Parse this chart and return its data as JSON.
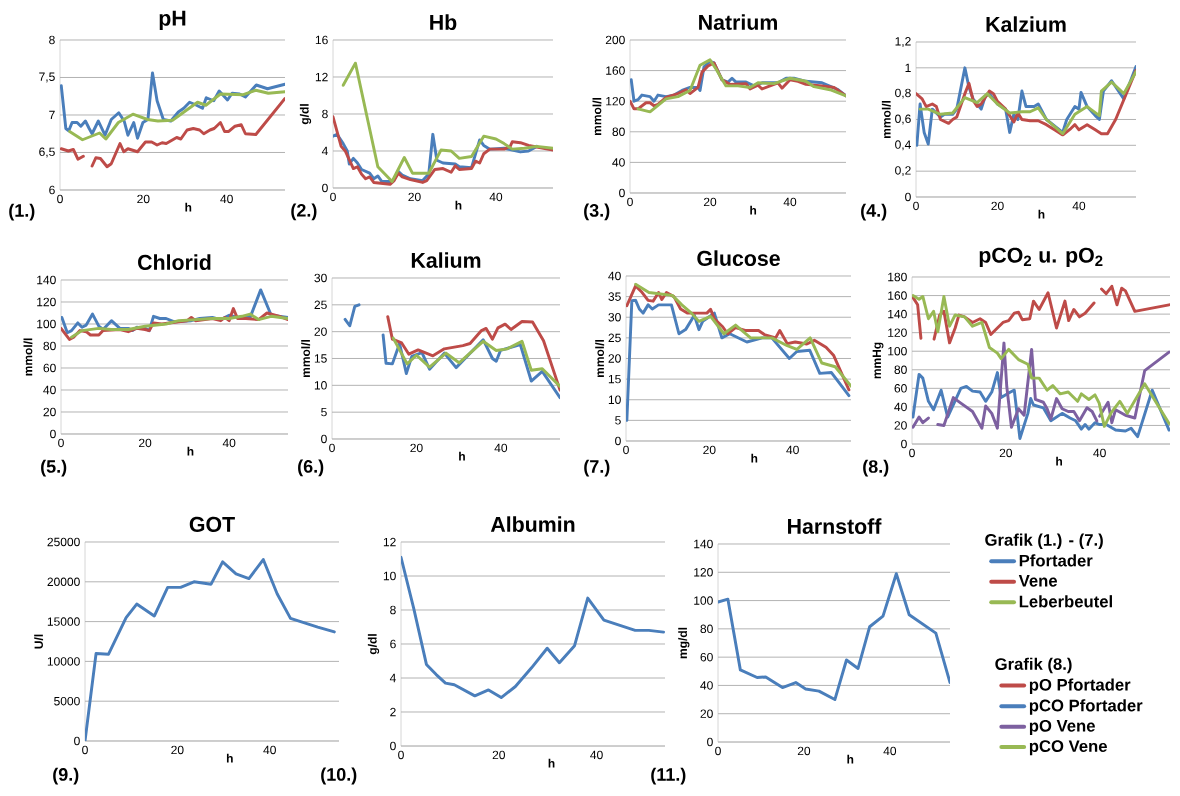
{
  "chart_data": [
    {
      "type": "line",
      "title": "pH",
      "xlabel": "h",
      "annotations": [
        "(1.)"
      ],
      "xlim": [
        0,
        54
      ],
      "ylim": [
        6,
        8
      ],
      "xticks": [
        0,
        20,
        40
      ],
      "yticks": [
        6,
        {
          "value": 6.5,
          "label": "6,5"
        },
        7,
        {
          "value": 7.5,
          "label": "7,5"
        },
        8
      ],
      "grid": "y",
      "legend": "right",
      "legend_title": "Grafik (1.) - (7.)",
      "series": [
        {
          "name": "Pfortader",
          "color": "#4a7ebb",
          "x": [
            0.3,
            1.4,
            2.1,
            2.9,
            4.1,
            5,
            6.1,
            7,
            7.7,
            9.2,
            10.8,
            12.3,
            14.1,
            15.4,
            16.3,
            17.7,
            18.6,
            19.9,
            21.1,
            22.2,
            23.3,
            24.8,
            26.6,
            28.4,
            29.7,
            31.1,
            32.4,
            34.2,
            35.1,
            36.9,
            38.2,
            40.2,
            41.3,
            43.1,
            44.5,
            47.1,
            49.8,
            54
          ],
          "values": [
            7.39,
            6.82,
            6.79,
            6.9,
            6.9,
            6.85,
            6.92,
            6.82,
            6.75,
            6.92,
            6.73,
            6.94,
            7.03,
            6.92,
            6.73,
            6.9,
            6.69,
            6.9,
            6.94,
            7.56,
            7.19,
            6.94,
            6.92,
            7.04,
            7.09,
            7.17,
            7.14,
            7.09,
            7.23,
            7.19,
            7.32,
            7.2,
            7.29,
            7.28,
            7.24,
            7.4,
            7.35,
            7.41
          ]
        },
        {
          "name": "Vene",
          "color": "#be4b48",
          "x": [
            0.3,
            2,
            3.2,
            4.3,
            5.6,
            6.6,
            7.7,
            8.6,
            9.7,
            11.3,
            12.3,
            14.4,
            15.3,
            16.3,
            18.6,
            20.5,
            22,
            23.3,
            24.5,
            25.5,
            28,
            29,
            30.5,
            32,
            33.5,
            34.5,
            36,
            37,
            38.5,
            39.5,
            40.5,
            42,
            43.5,
            44.5,
            47,
            54
          ],
          "values": [
            6.55,
            6.52,
            6.54,
            6.41,
            6.45,
            null,
            6.32,
            6.43,
            6.42,
            6.31,
            6.35,
            6.62,
            6.51,
            6.55,
            6.51,
            6.64,
            6.64,
            6.6,
            6.63,
            6.62,
            6.7,
            6.68,
            6.8,
            6.82,
            6.8,
            6.75,
            6.8,
            6.82,
            6.9,
            6.78,
            6.78,
            6.85,
            6.87,
            6.75,
            6.74,
            7.22
          ]
        },
        {
          "name": "Leberbeutel",
          "color": "#98b954",
          "x": [
            2.3,
            5.4,
            9.5,
            11,
            14,
            17.5,
            21,
            23.5,
            27,
            30,
            33,
            35,
            38.5,
            44,
            47,
            50,
            54
          ],
          "values": [
            6.78,
            6.67,
            6.76,
            6.68,
            6.9,
            7.01,
            6.94,
            6.92,
            6.93,
            7.05,
            7.17,
            7.13,
            7.28,
            7.27,
            7.33,
            7.29,
            7.31
          ]
        }
      ]
    },
    {
      "type": "line",
      "title": "Hb",
      "xlabel": "h",
      "ylabel": "g/dl",
      "annotations": [
        "(2.)"
      ],
      "xlim": [
        0,
        54
      ],
      "ylim": [
        0,
        16
      ],
      "xticks": [
        0,
        20,
        40
      ],
      "yticks": [
        0,
        4,
        8,
        12,
        16
      ],
      "grid": "y",
      "series": [
        {
          "color": "#4a7ebb",
          "x": [
            0,
            1,
            2.5,
            3.5,
            4,
            5,
            6,
            7,
            9,
            10,
            11,
            12,
            14,
            15,
            16,
            17,
            19,
            22,
            23.5,
            24.5,
            25.5,
            27,
            30,
            31,
            34,
            36,
            37,
            38.5,
            42,
            44,
            46,
            48,
            50
          ],
          "values": [
            5.6,
            5.8,
            4.8,
            4,
            2.6,
            3.2,
            2.7,
            2,
            1.6,
            1,
            1.3,
            0.7,
            0.7,
            0.9,
            1.8,
            1.4,
            1,
            0.8,
            1.5,
            5.8,
            3,
            2.7,
            2.6,
            2.3,
            2.2,
            5.2,
            4.6,
            4.2,
            4.3,
            4.1,
            3.9,
            4,
            4.5
          ]
        },
        {
          "color": "#be4b48",
          "x": [
            0,
            2,
            3,
            5,
            6,
            7,
            8,
            9,
            10,
            12,
            14,
            15,
            16,
            17,
            19,
            22,
            23,
            25,
            27,
            29,
            30,
            31,
            34,
            35,
            36,
            37,
            38.5,
            42,
            43.5,
            44,
            46,
            48,
            54
          ],
          "values": [
            7.7,
            4.5,
            4,
            2.1,
            2.3,
            1.5,
            1,
            1.2,
            0.6,
            0.5,
            0.4,
            0.8,
            1.6,
            1.2,
            0.9,
            0.6,
            0.8,
            2,
            2.1,
            1.7,
            2.4,
            2,
            2.1,
            2.9,
            2.7,
            3.7,
            4.2,
            4.2,
            4.5,
            5,
            4.9,
            4.6,
            4.1
          ]
        },
        {
          "color": "#98b954",
          "x": [
            2.5,
            5.5,
            11,
            14.5,
            17.5,
            19.5,
            23.5,
            26.5,
            29,
            31,
            34,
            37,
            40,
            42,
            44,
            47,
            50,
            54
          ],
          "values": [
            11.1,
            13.5,
            2.3,
            0.7,
            3.3,
            1.6,
            1.6,
            4.1,
            4,
            3.2,
            3.4,
            5.6,
            5.3,
            4.8,
            4.2,
            4.3,
            4.5,
            4.3
          ]
        }
      ]
    },
    {
      "type": "line",
      "title": "Natrium",
      "xlabel": "h",
      "ylabel": "mmol/l",
      "annotations": [
        "(3.)"
      ],
      "xlim": [
        0,
        54
      ],
      "ylim": [
        0,
        200
      ],
      "xticks": [
        0,
        20,
        40
      ],
      "yticks": [
        0,
        40,
        80,
        120,
        160,
        200
      ],
      "grid": "y",
      "series": [
        {
          "color": "#4a7ebb",
          "x": [
            0.3,
            1,
            2,
            3,
            5,
            6,
            7,
            9,
            11,
            13,
            15,
            17,
            17.5,
            18.5,
            20,
            21,
            23,
            24.5,
            25.5,
            26.5,
            29,
            31,
            33,
            37,
            39,
            41,
            44,
            48,
            52,
            54
          ],
          "values": [
            148,
            120,
            122,
            128,
            126,
            120,
            128,
            126,
            128,
            134,
            138,
            138,
            134,
            165,
            172,
            170,
            148,
            145,
            150,
            145,
            145,
            140,
            144,
            144,
            150,
            150,
            146,
            144,
            135,
            127
          ]
        },
        {
          "color": "#be4b48",
          "x": [
            0,
            1,
            2,
            4,
            5,
            6,
            7,
            9,
            12,
            14,
            15,
            17,
            18,
            19.5,
            21,
            23,
            25,
            29,
            30,
            32,
            33,
            35,
            37,
            38,
            40,
            42,
            44,
            48,
            51,
            54
          ],
          "values": [
            120,
            110,
            110,
            118,
            118,
            114,
            116,
            125,
            130,
            135,
            130,
            138,
            158,
            166,
            170,
            148,
            142,
            143,
            136,
            141,
            136,
            140,
            144,
            137,
            148,
            146,
            142,
            140,
            138,
            127
          ]
        },
        {
          "color": "#98b954",
          "x": [
            2,
            5,
            9,
            12,
            15,
            17.5,
            20,
            21.5,
            24,
            27,
            30,
            32,
            36,
            40,
            44,
            46,
            50,
            54
          ],
          "values": [
            110,
            106,
            123,
            126,
            134,
            167,
            174,
            162,
            140,
            140,
            138,
            144,
            143,
            150,
            146,
            139,
            135,
            127
          ]
        }
      ]
    },
    {
      "type": "line",
      "title": "Kalzium",
      "xlabel": "h",
      "ylabel": "mmol/l",
      "annotations": [
        "(4.)"
      ],
      "xlim": [
        0,
        54
      ],
      "ylim": [
        0,
        1.2
      ],
      "xticks": [
        0,
        20,
        40
      ],
      "yticks": [
        0,
        {
          "value": 0.2,
          "label": "0,2"
        },
        {
          "value": 0.4,
          "label": "0,4"
        },
        {
          "value": 0.6,
          "label": "0,6"
        },
        {
          "value": 0.8,
          "label": "0,8"
        },
        1,
        {
          "value": 1.2,
          "label": "1,2"
        }
      ],
      "grid": "y",
      "series": [
        {
          "color": "#4a7ebb",
          "x": [
            0.2,
            1,
            2,
            3,
            4,
            6,
            7,
            9,
            10,
            12,
            13,
            14,
            16,
            17,
            18,
            20,
            22,
            23,
            24,
            25,
            26,
            27,
            29,
            30,
            32,
            34,
            36,
            37,
            39,
            40,
            40.5,
            42,
            44,
            45,
            46,
            48,
            51,
            54
          ],
          "values": [
            0.4,
            0.72,
            0.5,
            0.41,
            0.68,
            0.62,
            0.64,
            0.64,
            0.68,
            1.0,
            0.85,
            0.76,
            0.68,
            0.78,
            0.8,
            0.72,
            0.68,
            0.5,
            0.64,
            0.6,
            0.82,
            0.7,
            0.7,
            0.72,
            0.6,
            0.55,
            0.5,
            0.6,
            0.7,
            0.68,
            0.81,
            0.7,
            0.63,
            0.6,
            0.82,
            0.9,
            0.76,
            1.01
          ]
        },
        {
          "color": "#be4b48",
          "x": [
            0,
            1.5,
            2.5,
            4,
            5,
            6,
            8,
            9,
            10,
            12,
            13,
            14,
            15,
            16,
            18,
            19,
            20,
            22,
            24,
            25,
            26,
            28,
            30,
            32,
            34,
            36,
            38,
            39,
            40,
            42,
            44,
            45.5,
            47,
            49,
            54
          ],
          "values": [
            0.8,
            0.76,
            0.7,
            0.72,
            0.7,
            0.6,
            0.57,
            0.6,
            0.62,
            0.8,
            0.88,
            0.75,
            0.7,
            0.72,
            0.82,
            0.8,
            0.74,
            0.68,
            0.58,
            0.65,
            0.6,
            0.59,
            0.59,
            0.56,
            0.52,
            0.48,
            0.53,
            0.56,
            0.52,
            0.56,
            0.52,
            0.49,
            0.49,
            0.6,
            0.98
          ]
        },
        {
          "color": "#98b954",
          "x": [
            1,
            3,
            6,
            9,
            12,
            15,
            17.5,
            20,
            23,
            26,
            28,
            30,
            32,
            36,
            39,
            42,
            45,
            45.5,
            48,
            51,
            54
          ],
          "values": [
            0.68,
            0.68,
            0.64,
            0.65,
            0.77,
            0.73,
            0.8,
            0.72,
            0.65,
            0.66,
            0.66,
            0.69,
            0.6,
            0.49,
            0.64,
            0.7,
            0.63,
            0.82,
            0.89,
            0.8,
            0.97
          ]
        }
      ]
    },
    {
      "type": "line",
      "title": "Chlorid",
      "xlabel": "h",
      "ylabel": "mmol/l",
      "annotations": [
        "(5.)"
      ],
      "xlim": [
        0,
        54
      ],
      "ylim": [
        0,
        140
      ],
      "xticks": [
        0,
        20,
        40
      ],
      "yticks": [
        0,
        20,
        40,
        60,
        80,
        100,
        120,
        140
      ],
      "grid": "y",
      "series": [
        {
          "color": "#4a7ebb",
          "x": [
            0.2,
            1.5,
            2.5,
            4,
            5,
            6,
            7.5,
            9,
            10,
            12,
            14,
            16,
            17,
            18,
            20,
            21,
            22,
            23.5,
            25,
            27,
            31,
            33,
            36,
            38,
            40,
            42,
            44,
            45,
            47.5,
            50,
            54
          ],
          "values": [
            106,
            92,
            94,
            101,
            97,
            99,
            109,
            98,
            95,
            103,
            96,
            96,
            94,
            97,
            96,
            94,
            107,
            105,
            105,
            102,
            103,
            105,
            106,
            104,
            108,
            106,
            107,
            106,
            131,
            108,
            106
          ]
        },
        {
          "color": "#be4b48",
          "x": [
            0,
            2,
            3,
            4.5,
            6,
            7,
            9,
            10,
            14,
            16,
            18,
            20,
            21,
            22,
            24,
            28,
            30,
            31,
            32,
            36,
            38,
            39,
            40,
            41,
            42,
            44,
            47,
            49,
            52,
            54
          ],
          "values": [
            96,
            86,
            88,
            94,
            93,
            90,
            90,
            94,
            95,
            93,
            96,
            95,
            94,
            101,
            100,
            102,
            103,
            106,
            103,
            105,
            103,
            106,
            103,
            114,
            105,
            105,
            104,
            110,
            107,
            104
          ]
        },
        {
          "color": "#98b954",
          "x": [
            2.5,
            5,
            9,
            12,
            16,
            20,
            25,
            28,
            32,
            36,
            40,
            43,
            45,
            47,
            50,
            54
          ],
          "values": [
            88,
            94,
            96,
            95,
            95,
            98,
            100,
            103,
            104,
            105,
            105,
            107,
            109,
            104,
            107,
            105
          ]
        }
      ]
    },
    {
      "type": "line",
      "title": "Kalium",
      "xlabel": "h",
      "ylabel": "mmol/l",
      "annotations": [
        "(6.)"
      ],
      "xlim": [
        0,
        54
      ],
      "ylim": [
        0,
        30
      ],
      "xticks": [
        0,
        20,
        40
      ],
      "yticks": [
        0,
        5,
        10,
        15,
        20,
        25,
        30
      ],
      "grid": "y",
      "series": [
        {
          "color": "#4a7ebb",
          "x": [
            3.1,
            4.2,
            5.4,
            6.4,
            9,
            12.1,
            12.8,
            14.3,
            16,
            17.6,
            18.9,
            21.3,
            23.1,
            26.6,
            29.4,
            35.8,
            38,
            38.9,
            39.9,
            44.6,
            47.2,
            49.8,
            54
          ],
          "values": [
            22.3,
            21.1,
            24.7,
            25,
            null,
            19.4,
            14.1,
            14,
            17.8,
            12.2,
            15.4,
            16.1,
            13,
            16,
            13.3,
            18.5,
            15,
            14.5,
            16.5,
            17.6,
            10.8,
            12.6,
            7.7
          ]
        },
        {
          "color": "#be4b48",
          "x": [
            13.2,
            14.3,
            16.5,
            18.2,
            20.4,
            23.9,
            26.6,
            31,
            32.7,
            35.4,
            36.5,
            38,
            39.3,
            41,
            42.4,
            45,
            47.5,
            50.1,
            54
          ],
          "values": [
            22.8,
            18.6,
            17.9,
            15.8,
            16.6,
            15.5,
            16.8,
            17.4,
            17.8,
            20.2,
            20.6,
            18.6,
            20.7,
            21.4,
            20.4,
            21.9,
            21.8,
            18.3,
            9.1
          ]
        },
        {
          "color": "#98b954",
          "x": [
            14.5,
            17.8,
            20,
            23.1,
            27,
            30.1,
            35.8,
            38.9,
            41.5,
            45,
            47.2,
            49.8,
            54
          ],
          "values": [
            18.8,
            14,
            15.6,
            13.4,
            16,
            14.2,
            18.2,
            16.5,
            16.8,
            18.2,
            12.8,
            13.1,
            9.8
          ]
        }
      ]
    },
    {
      "type": "line",
      "title": "Glucose",
      "xlabel": "h",
      "ylabel": "mmol/l",
      "annotations": [
        "(7.)"
      ],
      "xlim": [
        0,
        54
      ],
      "ylim": [
        0,
        40
      ],
      "xticks": [
        0,
        20,
        40
      ],
      "yticks": [
        0,
        5,
        10,
        15,
        20,
        25,
        30,
        35,
        40
      ],
      "grid": "y",
      "series": [
        {
          "color": "#4a7ebb",
          "x": [
            0.2,
            1.4,
            2.3,
            3.2,
            4.1,
            5.3,
            6.3,
            7.8,
            10.9,
            12.7,
            14.3,
            16.4,
            17.5,
            18.4,
            19.8,
            21.2,
            23,
            24.9,
            29,
            32.7,
            35,
            39.2,
            41,
            44.1,
            46.5,
            49.3,
            53.5
          ],
          "values": [
            5,
            34,
            34.1,
            32,
            31,
            33,
            32,
            33,
            33,
            26,
            27,
            30.5,
            27,
            29,
            30,
            31,
            25,
            26,
            24,
            25,
            25,
            20,
            21.7,
            22,
            16.4,
            16.6,
            11
          ]
        },
        {
          "color": "#be4b48",
          "x": [
            0.2,
            2.3,
            3.7,
            5.3,
            6.5,
            7.8,
            8.6,
            9.7,
            11.5,
            13.1,
            14.7,
            16.6,
            19.4,
            20.3,
            21.2,
            23.2,
            24.4,
            26.3,
            28.6,
            31.8,
            33.2,
            35.9,
            36.9,
            38.7,
            40.6,
            43.4,
            45.2,
            48,
            49.8,
            53.5
          ],
          "values": [
            32.8,
            37.6,
            36.2,
            34.1,
            33.9,
            36,
            34.3,
            36,
            35,
            32,
            31,
            31,
            31,
            31.9,
            29.6,
            27.7,
            26,
            27.5,
            26.8,
            26.8,
            25.8,
            25,
            26.8,
            23.6,
            24,
            23.5,
            24.4,
            22.7,
            20.8,
            12.4
          ]
        },
        {
          "color": "#98b954",
          "x": [
            2.3,
            5.5,
            11.1,
            13.4,
            15.7,
            17.5,
            20.3,
            23.5,
            26.3,
            29.9,
            35,
            38.7,
            41,
            44.2,
            47,
            50.2,
            54
          ],
          "values": [
            38,
            36,
            35.3,
            33,
            31,
            29,
            30.2,
            26,
            28.1,
            25,
            25,
            23.1,
            22.2,
            25,
            18.9,
            18,
            13.3
          ]
        }
      ]
    },
    {
      "type": "line",
      "title": "pCO$_{2}$ u. pO$_{2}$",
      "xlabel": "h",
      "ylabel": "mmHg",
      "annotations": [
        "(8.)"
      ],
      "xlim": [
        0,
        55
      ],
      "ylim": [
        0,
        180
      ],
      "xticks": [
        0,
        20,
        40
      ],
      "yticks": [
        0,
        20,
        40,
        60,
        80,
        100,
        120,
        140,
        160,
        180
      ],
      "grid": "y",
      "legend": "right",
      "legend_title": "Grafik (8.)",
      "series": [
        {
          "name": "pO Pfortader",
          "color": "#be4b48",
          "x": [
            0.2,
            1.2,
            1.9,
            3.3,
            4.7,
            5.9,
            6.8,
            8,
            9.2,
            10,
            11.2,
            12.9,
            14.5,
            15.7,
            16.8,
            18.2,
            19.4,
            20.6,
            21.8,
            22.7,
            23.5,
            25.1,
            25.9,
            27.1,
            29,
            30.8,
            32.6,
            33.4,
            34.5,
            35.7,
            36.9,
            38.8,
            39.6,
            40.4,
            41.4,
            42.6,
            43.7,
            44.7,
            45.5,
            47.5,
            54.8
          ],
          "values": [
            158,
            150,
            114,
            null,
            113,
            139,
            143,
            109,
            125,
            139,
            137,
            131,
            135,
            131,
            118,
            125,
            131,
            133,
            141,
            142,
            134,
            135,
            154,
            145,
            163,
            125,
            154,
            133,
            145,
            137,
            141,
            152,
            null,
            167,
            162,
            170,
            150,
            168,
            165,
            143,
            150
          ]
        },
        {
          "name": "pCO Pfortader",
          "color": "#4a7ebb",
          "x": [
            0.2,
            1.5,
            2.3,
            3.5,
            4.6,
            6.2,
            7.6,
            10.4,
            11.6,
            12.9,
            14.5,
            15.7,
            17,
            18.2,
            19,
            21,
            21.8,
            23,
            24.7,
            25.3,
            25.9,
            28,
            29.6,
            30.8,
            32,
            33.7,
            34.9,
            36.1,
            36.9,
            37.7,
            39,
            40,
            41.4,
            43.4,
            45.5,
            46.7,
            48.1,
            51.2,
            54.8
          ],
          "values": [
            29,
            75,
            71,
            46,
            37,
            58,
            29,
            60,
            62,
            57,
            56,
            46,
            56,
            77,
            50,
            56,
            58,
            6,
            33,
            49,
            42,
            39,
            25,
            29,
            33,
            28,
            25,
            16,
            21,
            16,
            23,
            21,
            21,
            15,
            14,
            17,
            8,
            58,
            15
          ]
        },
        {
          "name": "pO Vene",
          "color": "#7d60a0",
          "x": [
            0.2,
            1.5,
            2.3,
            3.5,
            4.5,
            5.5,
            6.8,
            8.8,
            10.4,
            12.9,
            14.9,
            15.7,
            17,
            18.2,
            19.6,
            20.2,
            21.2,
            22.7,
            23.9,
            25.5,
            26.3,
            28,
            28.8,
            29.6,
            30.8,
            32,
            33.3,
            34.5,
            35.7,
            37.3,
            38.4,
            39.4,
            39.7,
            40,
            41.8,
            42.6,
            43.4,
            45.5,
            47.5,
            49.6,
            54.8
          ],
          "values": [
            18,
            29,
            23,
            28,
            null,
            21,
            20,
            50,
            44,
            35,
            17,
            41,
            33,
            17,
            109,
            62,
            18,
            38,
            31,
            102,
            48,
            45,
            38,
            27,
            49,
            38,
            35,
            35,
            25,
            39,
            35,
            25,
            null,
            30,
            45,
            23,
            37,
            31,
            28,
            79,
            99
          ]
        },
        {
          "name": "pCO Vene",
          "color": "#98b954",
          "x": [
            0.2,
            1.5,
            2.3,
            3.5,
            4.6,
            5.5,
            6.8,
            8,
            9.2,
            11.2,
            12.9,
            14.9,
            16.5,
            18.2,
            19,
            20.6,
            22.7,
            24.7,
            25.5,
            27.1,
            28.8,
            30,
            31.6,
            33.3,
            35.3,
            36.1,
            37.7,
            39,
            39.9,
            41,
            42.5,
            44.3,
            45.9,
            49.6,
            54.8
          ],
          "values": [
            160,
            156,
            159,
            135,
            143,
            121,
            159,
            127,
            139,
            137,
            127,
            131,
            104,
            98,
            92,
            102,
            91,
            86,
            71,
            71,
            58,
            63,
            54,
            56,
            46,
            54,
            48,
            53,
            44,
            19,
            34,
            46,
            33,
            65,
            22
          ]
        }
      ]
    },
    {
      "type": "line",
      "title": "GOT",
      "xlabel": "h",
      "ylabel": "U/l",
      "annotations": [
        "(9.)"
      ],
      "xlim": [
        0,
        55
      ],
      "ylim": [
        0,
        25000
      ],
      "xticks": [
        0,
        20,
        40
      ],
      "yticks": [
        0,
        5000,
        10000,
        15000,
        20000,
        25000
      ],
      "grid": "y",
      "series": [
        {
          "color": "#4a7ebb",
          "x": [
            0,
            2.4,
            5.1,
            8.9,
            11.2,
            15,
            17.9,
            20.7,
            23.6,
            27.3,
            29.8,
            32.7,
            35.5,
            38.6,
            41.6,
            44.5,
            50.4,
            54
          ],
          "values": [
            0,
            11000,
            10900,
            15500,
            17200,
            15700,
            19300,
            19300,
            20000,
            19700,
            22500,
            21000,
            20400,
            22800,
            18500,
            15400,
            14300,
            13700
          ]
        }
      ]
    },
    {
      "type": "line",
      "title": "Albumin",
      "xlabel": "h",
      "ylabel": "g/dl",
      "annotations": [
        "(10.)"
      ],
      "xlim": [
        0,
        54
      ],
      "ylim": [
        0,
        12
      ],
      "xticks": [
        0,
        20,
        40
      ],
      "yticks": [
        0,
        2,
        4,
        6,
        8,
        10,
        12
      ],
      "grid": "y",
      "series": [
        {
          "color": "#4a7ebb",
          "x": [
            0,
            2.6,
            5.2,
            7.2,
            9.1,
            10.9,
            15.1,
            17.9,
            20.5,
            23.4,
            26.7,
            29.9,
            32.4,
            35.5,
            38.2,
            41.5,
            47.9,
            50.7,
            53.7
          ],
          "values": [
            11.1,
            8.1,
            4.8,
            4.2,
            3.7,
            3.6,
            2.95,
            3.3,
            2.85,
            3.5,
            4.6,
            5.75,
            4.9,
            5.9,
            8.7,
            7.4,
            6.8,
            6.8,
            6.7
          ]
        }
      ]
    },
    {
      "type": "line",
      "title": "Harnstoff",
      "xlabel": "h",
      "ylabel": "mg/dl",
      "annotations": [
        "(11.)"
      ],
      "xlim": [
        0,
        54
      ],
      "ylim": [
        0,
        140
      ],
      "xticks": [
        0,
        20,
        40
      ],
      "yticks": [
        0,
        20,
        40,
        60,
        80,
        100,
        120,
        140
      ],
      "grid": "y",
      "series": [
        {
          "color": "#4a7ebb",
          "x": [
            0,
            2.3,
            5.2,
            9.1,
            11.1,
            15,
            18.1,
            20.4,
            23.5,
            27.2,
            29.9,
            32.6,
            35.3,
            38.4,
            41.5,
            44.5,
            50.7,
            54
          ],
          "values": [
            99,
            101,
            51,
            45.6,
            46,
            38.5,
            42,
            37.5,
            36,
            30,
            58,
            52,
            81.5,
            89,
            119,
            90,
            77,
            42
          ]
        }
      ]
    }
  ]
}
